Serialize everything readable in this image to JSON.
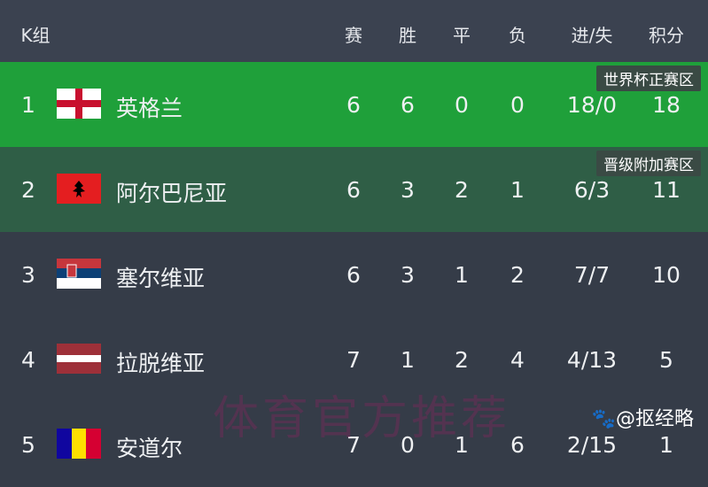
{
  "header": {
    "group": "K组",
    "cols": [
      "赛",
      "胜",
      "平",
      "负",
      "进/失",
      "积分"
    ]
  },
  "rows": [
    {
      "rank": "1",
      "team": "英格兰",
      "flag": "england-flag",
      "vals": [
        "6",
        "6",
        "0",
        "0",
        "18/0",
        "18"
      ],
      "badge": "世界杯正赛区",
      "bg": "#1fa03a"
    },
    {
      "rank": "2",
      "team": "阿尔巴尼亚",
      "flag": "albania-flag",
      "vals": [
        "6",
        "3",
        "2",
        "1",
        "6/3",
        "11"
      ],
      "badge": "晋级附加赛区",
      "bg": "#2f5e46"
    },
    {
      "rank": "3",
      "team": "塞尔维亚",
      "flag": "serbia-flag",
      "vals": [
        "6",
        "3",
        "1",
        "2",
        "7/7",
        "10"
      ],
      "bg": "#353c48"
    },
    {
      "rank": "4",
      "team": "拉脱维亚",
      "flag": "latvia-flag",
      "vals": [
        "7",
        "1",
        "2",
        "4",
        "4/13",
        "5"
      ],
      "bg": "#353c48"
    },
    {
      "rank": "5",
      "team": "安道尔",
      "flag": "andorra-flag",
      "vals": [
        "7",
        "0",
        "1",
        "6",
        "2/15",
        "1"
      ],
      "bg": "#353c48"
    }
  ],
  "watermark": "体育官方推荐",
  "credit": "@抠经略"
}
